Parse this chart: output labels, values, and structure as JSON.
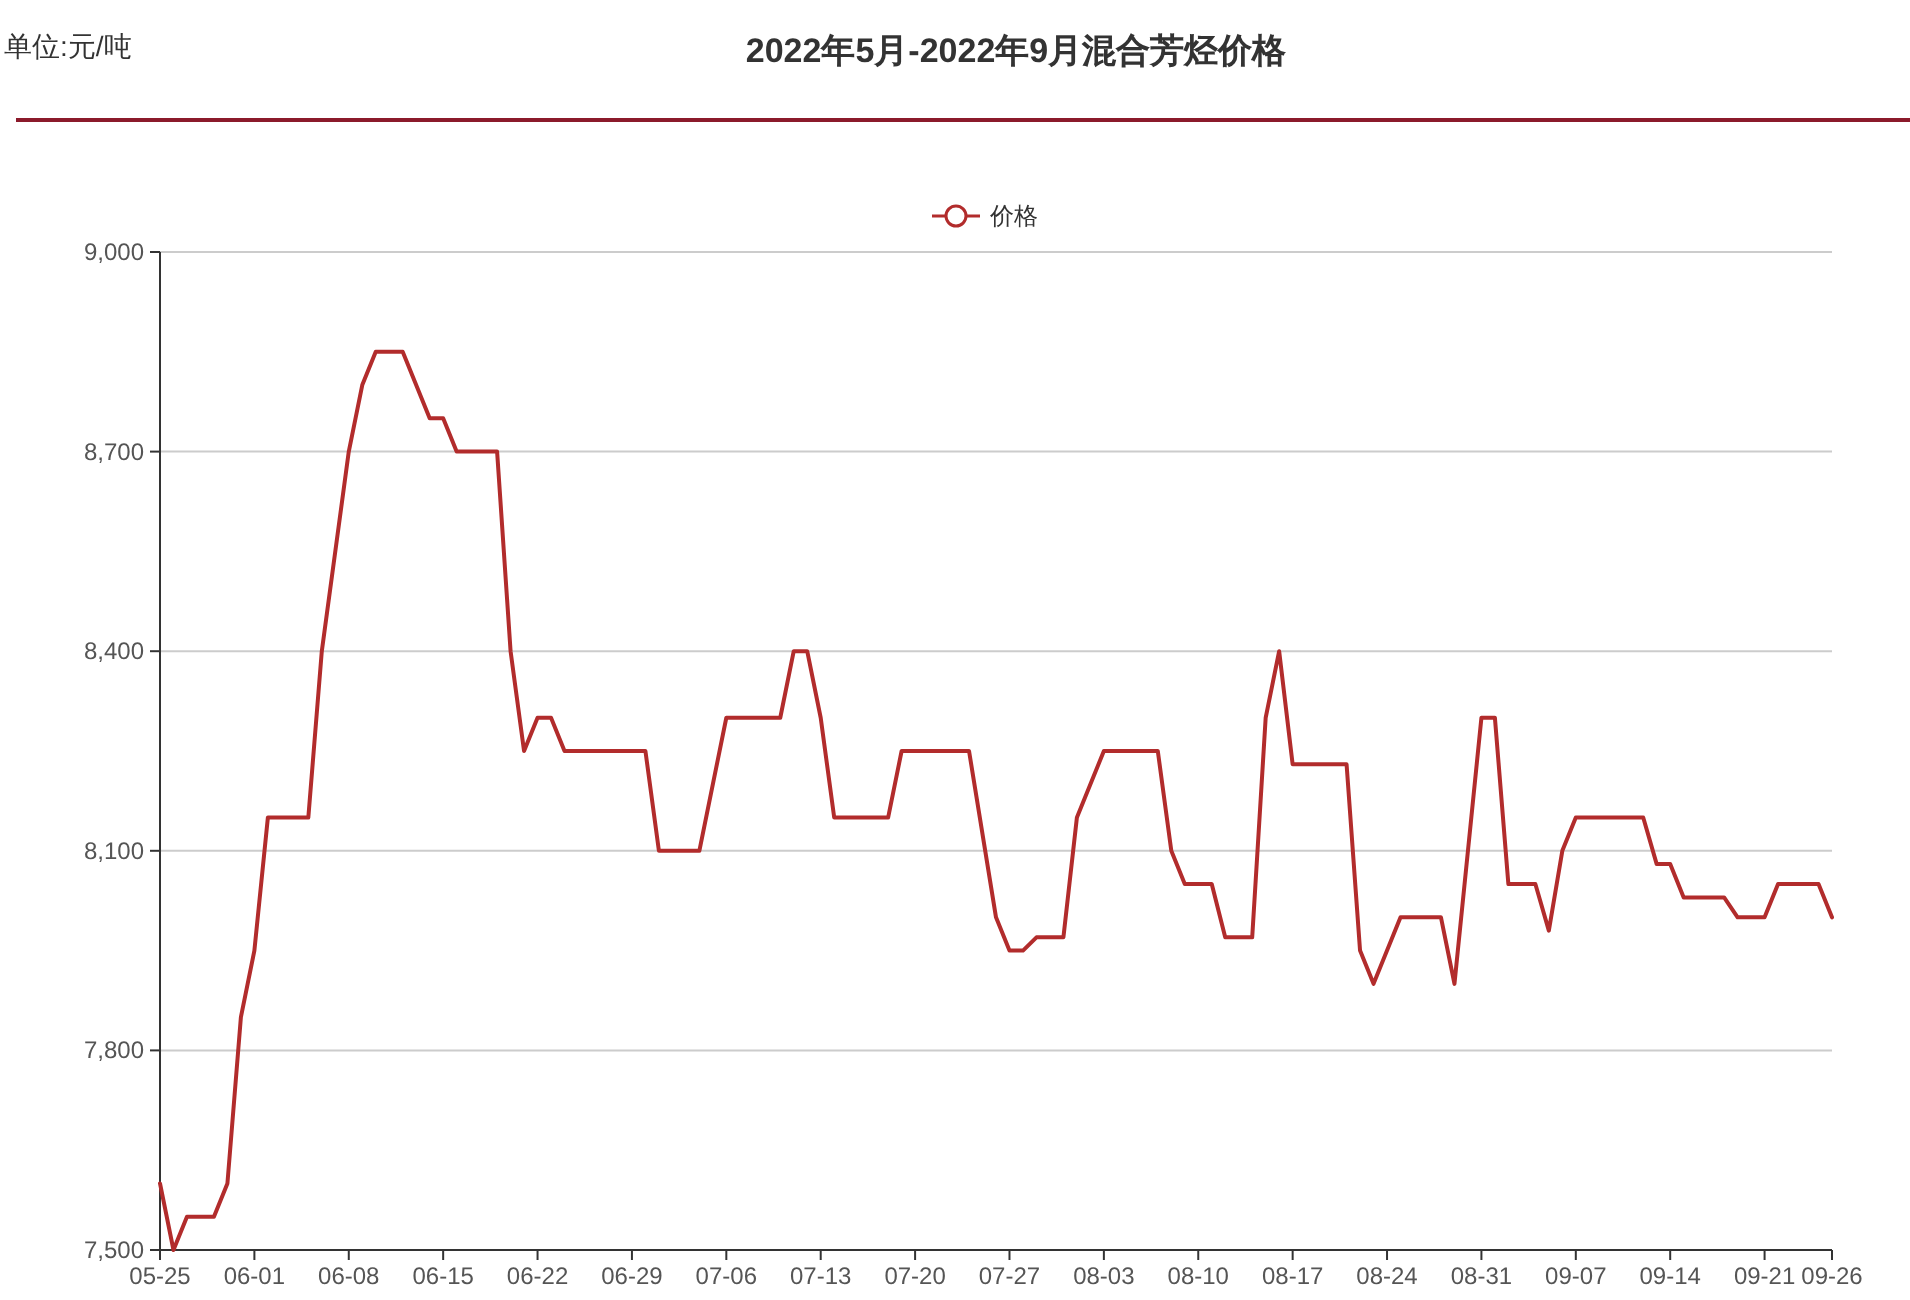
{
  "chart_data": {
    "type": "line",
    "title": "2022年5月-2022年9月混合芳烃价格",
    "annotations": [
      "单位:元/吨"
    ],
    "x": [
      "2022-05-25",
      "2022-05-26",
      "2022-05-27",
      "2022-05-29",
      "2022-05-30",
      "2022-05-31",
      "2022-06-01",
      "2022-06-02",
      "2022-06-05",
      "2022-06-06",
      "2022-06-08",
      "2022-06-09",
      "2022-06-10",
      "2022-06-12",
      "2022-06-14",
      "2022-06-15",
      "2022-06-16",
      "2022-06-19",
      "2022-06-20",
      "2022-06-21",
      "2022-06-22",
      "2022-06-23",
      "2022-06-24",
      "2022-06-30",
      "2022-07-01",
      "2022-07-04",
      "2022-07-06",
      "2022-07-10",
      "2022-07-11",
      "2022-07-12",
      "2022-07-13",
      "2022-07-14",
      "2022-07-18",
      "2022-07-19",
      "2022-07-24",
      "2022-07-26",
      "2022-07-27",
      "2022-07-28",
      "2022-07-29",
      "2022-07-31",
      "2022-08-01",
      "2022-08-03",
      "2022-08-07",
      "2022-08-08",
      "2022-08-09",
      "2022-08-11",
      "2022-08-12",
      "2022-08-14",
      "2022-08-15",
      "2022-08-16",
      "2022-08-17",
      "2022-08-21",
      "2022-08-22",
      "2022-08-23",
      "2022-08-25",
      "2022-08-28",
      "2022-08-29",
      "2022-08-31",
      "2022-09-01",
      "2022-09-02",
      "2022-09-04",
      "2022-09-05",
      "2022-09-06",
      "2022-09-07",
      "2022-09-12",
      "2022-09-13",
      "2022-09-14",
      "2022-09-15",
      "2022-09-18",
      "2022-09-19",
      "2022-09-21",
      "2022-09-22",
      "2022-09-25",
      "2022-09-26"
    ],
    "series": [
      {
        "name": "价格",
        "color": "#b22c2c",
        "values": [
          7600,
          7500,
          7550,
          7550,
          7600,
          7850,
          7950,
          8150,
          8150,
          8400,
          8700,
          8800,
          8850,
          8850,
          8750,
          8750,
          8700,
          8700,
          8400,
          8250,
          8300,
          8300,
          8250,
          8250,
          8100,
          8100,
          8300,
          8300,
          8400,
          8400,
          8300,
          8150,
          8150,
          8250,
          8250,
          8000,
          7950,
          7950,
          7970,
          7970,
          8150,
          8250,
          8250,
          8100,
          8050,
          8050,
          7970,
          7970,
          8300,
          8400,
          8230,
          8230,
          7950,
          7900,
          8000,
          8000,
          7900,
          8300,
          8300,
          8050,
          8050,
          7980,
          8100,
          8150,
          8150,
          8080,
          8080,
          8030,
          8030,
          8000,
          8000,
          8050,
          8050,
          8000
        ]
      }
    ],
    "xlim": [
      "2022-05-25",
      "2022-09-26"
    ],
    "xticks": [
      {
        "value": "2022-05-25",
        "label": "05-25"
      },
      {
        "value": "2022-06-01",
        "label": "06-01"
      },
      {
        "value": "2022-06-08",
        "label": "06-08"
      },
      {
        "value": "2022-06-15",
        "label": "06-15"
      },
      {
        "value": "2022-06-22",
        "label": "06-22"
      },
      {
        "value": "2022-06-29",
        "label": "06-29"
      },
      {
        "value": "2022-07-06",
        "label": "07-06"
      },
      {
        "value": "2022-07-13",
        "label": "07-13"
      },
      {
        "value": "2022-07-20",
        "label": "07-20"
      },
      {
        "value": "2022-07-27",
        "label": "07-27"
      },
      {
        "value": "2022-08-03",
        "label": "08-03"
      },
      {
        "value": "2022-08-10",
        "label": "08-10"
      },
      {
        "value": "2022-08-17",
        "label": "08-17"
      },
      {
        "value": "2022-08-24",
        "label": "08-24"
      },
      {
        "value": "2022-08-31",
        "label": "08-31"
      },
      {
        "value": "2022-09-07",
        "label": "09-07"
      },
      {
        "value": "2022-09-14",
        "label": "09-14"
      },
      {
        "value": "2022-09-21",
        "label": "09-21"
      },
      {
        "value": "2022-09-26",
        "label": "09-26"
      }
    ],
    "ylim": [
      7500,
      9000
    ],
    "yticks": [
      {
        "value": 7500,
        "label": "7,500"
      },
      {
        "value": 7800,
        "label": "7,800"
      },
      {
        "value": 8100,
        "label": "8,100"
      },
      {
        "value": 8400,
        "label": "8,400"
      },
      {
        "value": 8700,
        "label": "8,700"
      },
      {
        "value": 9000,
        "label": "9,000"
      }
    ],
    "grid": "y",
    "legend": "top",
    "line_style": "solid"
  }
}
